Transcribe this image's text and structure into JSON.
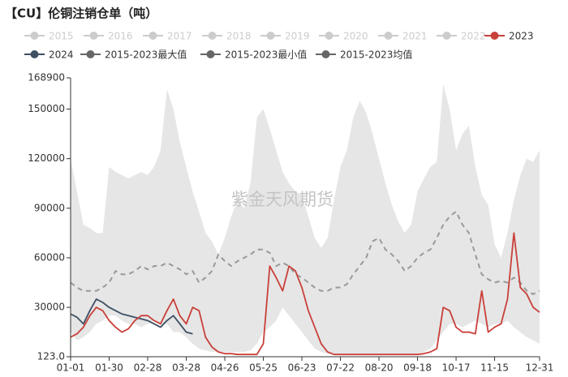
{
  "chart_data": {
    "type": "line",
    "title": "【CU】伦铜注销仓单（吨）",
    "watermark": "紫金天风期货",
    "legend_inactive": {
      "names": [
        "2015",
        "2016",
        "2017",
        "2018",
        "2019",
        "2020",
        "2021",
        "2022"
      ],
      "color": "#cccccc"
    },
    "categories": [
      "01-01",
      null,
      null,
      null,
      null,
      null,
      "01-30",
      null,
      null,
      null,
      null,
      null,
      "02-28",
      null,
      null,
      null,
      null,
      null,
      "03-28",
      null,
      null,
      null,
      null,
      null,
      "04-26",
      null,
      null,
      null,
      null,
      null,
      "05-25",
      null,
      null,
      null,
      null,
      null,
      "06-23",
      null,
      null,
      null,
      null,
      null,
      "07-22",
      null,
      null,
      null,
      null,
      null,
      "08-20",
      null,
      null,
      null,
      null,
      null,
      "09-18",
      null,
      null,
      null,
      null,
      null,
      "10-17",
      null,
      null,
      null,
      null,
      null,
      "11-15",
      null,
      null,
      null,
      null,
      null,
      null,
      "12-31"
    ],
    "series": [
      {
        "name": "2023",
        "color": "#c9403a",
        "style": "line",
        "values": [
          12000,
          14000,
          18000,
          25000,
          30000,
          28000,
          22000,
          18000,
          15000,
          17000,
          22000,
          25000,
          25000,
          22000,
          20000,
          28000,
          35000,
          25000,
          20000,
          30000,
          28000,
          12000,
          6000,
          3000,
          2000,
          2000,
          1500,
          1500,
          1500,
          1500,
          8000,
          55000,
          48000,
          40000,
          55000,
          52000,
          42000,
          28000,
          18000,
          8000,
          3000,
          1500,
          1500,
          1500,
          1500,
          1500,
          1500,
          1500,
          1500,
          1500,
          1500,
          1500,
          1500,
          1500,
          1500,
          2000,
          3000,
          5000,
          30000,
          28000,
          18000,
          15000,
          15000,
          14000,
          40000,
          15000,
          18000,
          20000,
          35000,
          75000,
          42000,
          38000,
          30000,
          27000
        ]
      },
      {
        "name": "2024",
        "color": "#3d4f63",
        "style": "line",
        "values": [
          26000,
          24000,
          20000,
          28000,
          35000,
          33000,
          30000,
          28000,
          26000,
          25000,
          24000,
          23000,
          22000,
          20000,
          18000,
          22000,
          25000,
          20000,
          15000,
          14000,
          null,
          null,
          null,
          null,
          null,
          null,
          null,
          null,
          null,
          null,
          null,
          null,
          null,
          null,
          null,
          null,
          null,
          null,
          null,
          null,
          null,
          null,
          null,
          null,
          null,
          null,
          null,
          null,
          null,
          null,
          null,
          null,
          null,
          null,
          null,
          null,
          null,
          null,
          null,
          null,
          null,
          null,
          null,
          null,
          null,
          null,
          null,
          null,
          null,
          null,
          null,
          null,
          null,
          null
        ]
      },
      {
        "name": "2015-2023最大值",
        "color": "#666666",
        "fill": "#e6e6e6",
        "style": "area",
        "values": [
          120000,
          100000,
          80000,
          78000,
          75000,
          75000,
          115000,
          112000,
          110000,
          108000,
          110000,
          112000,
          110000,
          115000,
          125000,
          162000,
          150000,
          130000,
          115000,
          100000,
          88000,
          75000,
          70000,
          62000,
          72000,
          85000,
          95000,
          90000,
          105000,
          145000,
          150000,
          138000,
          125000,
          112000,
          105000,
          100000,
          98000,
          85000,
          72000,
          66000,
          72000,
          95000,
          115000,
          125000,
          145000,
          155000,
          148000,
          135000,
          120000,
          105000,
          92000,
          82000,
          75000,
          80000,
          100000,
          108000,
          115000,
          118000,
          165000,
          150000,
          125000,
          135000,
          140000,
          115000,
          98000,
          92000,
          68000,
          60000,
          75000,
          95000,
          110000,
          120000,
          118000,
          125000
        ]
      },
      {
        "name": "2015-2023最小值",
        "color": "#666666",
        "fill": "#ffffff",
        "style": "area",
        "values": [
          15000,
          10000,
          12000,
          15000,
          20000,
          22000,
          25000,
          25000,
          22000,
          20000,
          20000,
          18000,
          20000,
          22000,
          20000,
          20000,
          15000,
          15000,
          12000,
          8000,
          5000,
          4000,
          3000,
          3000,
          3000,
          3000,
          3000,
          3000,
          4000,
          8000,
          15000,
          18000,
          22000,
          30000,
          25000,
          20000,
          15000,
          10000,
          5000,
          3000,
          2000,
          1500,
          1500,
          1500,
          1500,
          1500,
          1500,
          1500,
          1500,
          1500,
          1500,
          1500,
          1500,
          1500,
          2000,
          3000,
          5000,
          10000,
          15000,
          20000,
          20000,
          18000,
          20000,
          22000,
          20000,
          18000,
          20000,
          20000,
          22000,
          18000,
          15000,
          12000,
          10000,
          8000
        ]
      },
      {
        "name": "2015-2023均值",
        "color": "#666666",
        "line_color": "#999999",
        "style": "dashed",
        "values": [
          45000,
          42000,
          40000,
          40000,
          40000,
          42000,
          45000,
          52000,
          50000,
          50000,
          52000,
          55000,
          53000,
          55000,
          55000,
          57000,
          55000,
          53000,
          50000,
          52000,
          45000,
          48000,
          52000,
          62000,
          58000,
          55000,
          58000,
          60000,
          62000,
          65000,
          65000,
          63000,
          55000,
          57000,
          55000,
          50000,
          48000,
          45000,
          42000,
          40000,
          40000,
          42000,
          42000,
          44000,
          50000,
          55000,
          60000,
          70000,
          72000,
          65000,
          62000,
          58000,
          52000,
          55000,
          60000,
          63000,
          65000,
          72000,
          80000,
          85000,
          88000,
          80000,
          75000,
          62000,
          50000,
          47000,
          45000,
          46000,
          45000,
          48000,
          45000,
          40000,
          38000,
          40000
        ]
      }
    ],
    "ylim": [
      123,
      168900
    ],
    "yticks": [
      {
        "value": 123,
        "label": "123.0"
      },
      30000,
      60000,
      90000,
      120000,
      150000,
      168900
    ]
  }
}
